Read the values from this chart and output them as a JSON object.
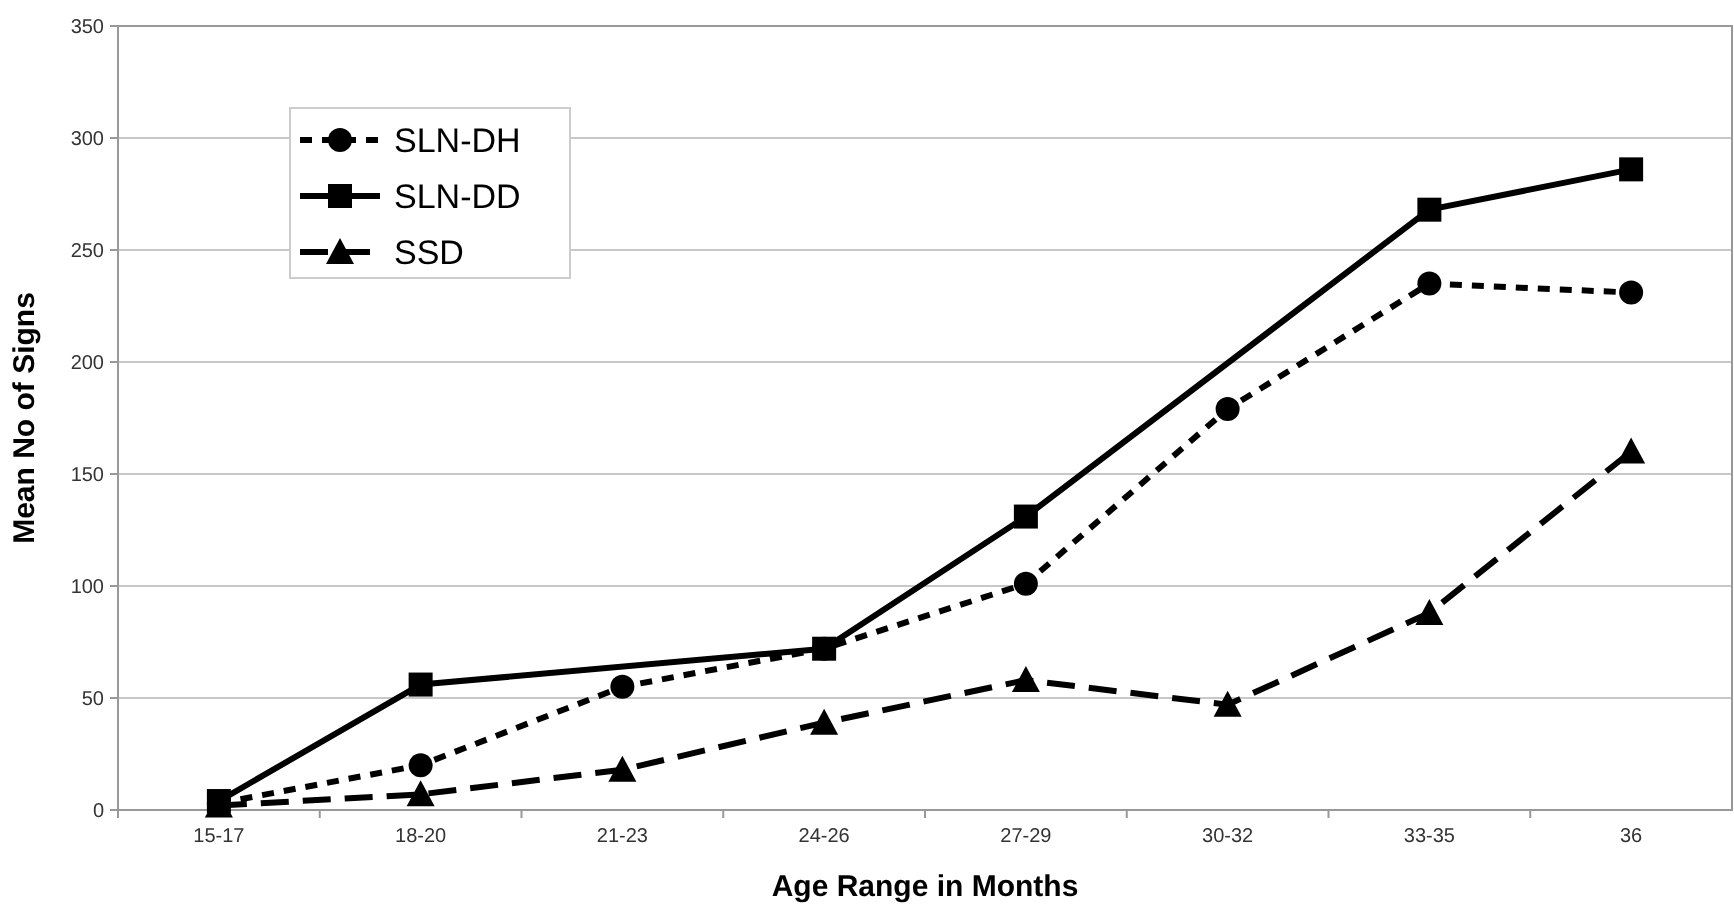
{
  "chart_data": {
    "type": "line",
    "xlabel": "Age Range in Months",
    "ylabel": "Mean No of Signs",
    "categories": [
      "15-17",
      "18-20",
      "21-23",
      "24-26",
      "27-29",
      "30-32",
      "33-35",
      "36"
    ],
    "series": [
      {
        "name": "SLN-DH",
        "color": "#000000",
        "marker": "circle",
        "line_style": "dashed",
        "values": [
          3,
          20,
          55,
          72,
          101,
          179,
          235,
          231
        ]
      },
      {
        "name": "SLN-DD",
        "color": "#000000",
        "marker": "square",
        "line_style": "solid",
        "values": [
          4,
          56,
          null,
          72,
          131,
          null,
          268,
          286
        ]
      },
      {
        "name": "SSD",
        "color": "#000000",
        "marker": "triangle",
        "line_style": "dashed",
        "values": [
          2,
          7,
          18,
          39,
          58,
          47,
          88,
          160
        ]
      }
    ],
    "ylim": [
      0,
      350
    ],
    "yticks": [
      0,
      50,
      100,
      150,
      200,
      250,
      300,
      350
    ],
    "grid": "y",
    "legend": "top left"
  }
}
